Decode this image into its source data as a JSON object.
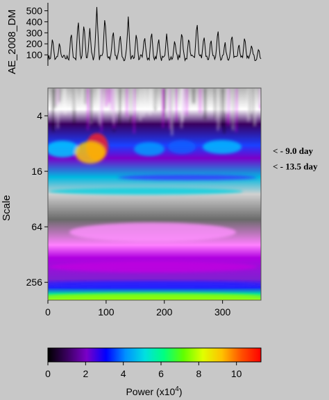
{
  "chart_data": [
    {
      "type": "line",
      "ylabel": "AE_2008_DM",
      "yticks": [
        100,
        200,
        300,
        400,
        500
      ],
      "ylim": [
        0,
        560
      ],
      "xlim": [
        0,
        366
      ],
      "peaks": [
        {
          "x": 8,
          "y": 250
        },
        {
          "x": 20,
          "y": 210
        },
        {
          "x": 40,
          "y": 300
        },
        {
          "x": 52,
          "y": 420
        },
        {
          "x": 62,
          "y": 380
        },
        {
          "x": 72,
          "y": 330
        },
        {
          "x": 84,
          "y": 530
        },
        {
          "x": 98,
          "y": 460
        },
        {
          "x": 112,
          "y": 340
        },
        {
          "x": 124,
          "y": 290
        },
        {
          "x": 138,
          "y": 430
        },
        {
          "x": 152,
          "y": 300
        },
        {
          "x": 166,
          "y": 270
        },
        {
          "x": 178,
          "y": 320
        },
        {
          "x": 190,
          "y": 250
        },
        {
          "x": 204,
          "y": 290
        },
        {
          "x": 218,
          "y": 240
        },
        {
          "x": 230,
          "y": 320
        },
        {
          "x": 242,
          "y": 260
        },
        {
          "x": 256,
          "y": 400
        },
        {
          "x": 268,
          "y": 280
        },
        {
          "x": 280,
          "y": 240
        },
        {
          "x": 292,
          "y": 330
        },
        {
          "x": 304,
          "y": 220
        },
        {
          "x": 316,
          "y": 290
        },
        {
          "x": 328,
          "y": 200
        },
        {
          "x": 338,
          "y": 260
        },
        {
          "x": 350,
          "y": 200
        },
        {
          "x": 362,
          "y": 160
        }
      ]
    },
    {
      "type": "heatmap",
      "ylabel": "Scale",
      "yticks": [
        4,
        16,
        64,
        256
      ],
      "xticks": [
        0,
        100,
        200,
        300
      ],
      "xlim": [
        0,
        366
      ],
      "ylim": [
        2,
        400
      ],
      "yscale": "log",
      "annotations": [
        {
          "text": "< - 9.0  day",
          "scale": 9.5
        },
        {
          "text": "< - 13.5 day",
          "scale": 14
        }
      ]
    },
    {
      "type": "colorbar",
      "xlabel_base": "Power (x10",
      "xlabel_exp": "4",
      "xlabel_end": ")",
      "ticks": [
        0,
        2,
        4,
        6,
        8,
        10
      ],
      "range": [
        0,
        11.3
      ],
      "colors": [
        "#000000",
        "#3a0060",
        "#7a00c8",
        "#0000ff",
        "#0090ff",
        "#00e0e0",
        "#00ff80",
        "#60ff00",
        "#e0ff00",
        "#ffc000",
        "#ff5000",
        "#ff0000"
      ]
    }
  ]
}
